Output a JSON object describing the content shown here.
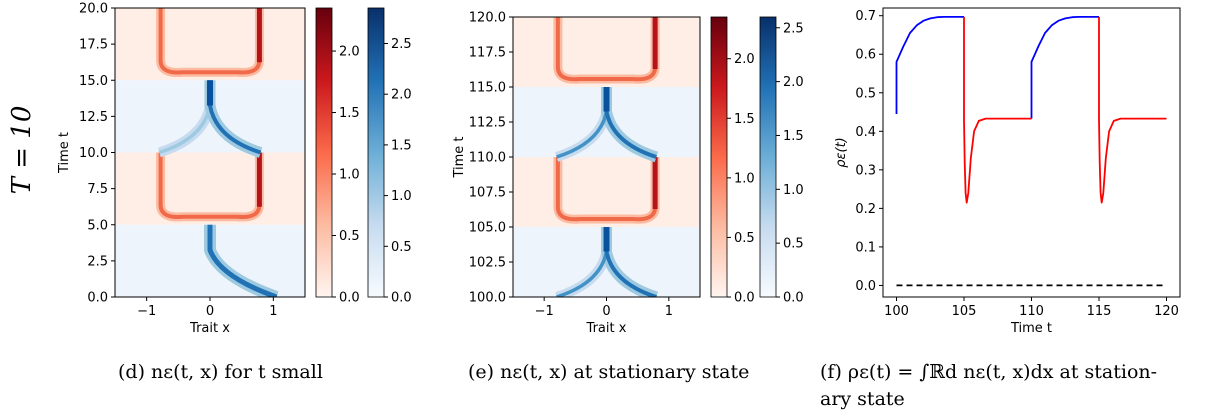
{
  "row_label": "T = 10",
  "captions": {
    "d": "(d) nε(t, x) for t small",
    "e": "(e) nε(t, x) at stationary state",
    "f_line1": "(f) ρε(t) = ∫ℝd nε(t, x)dx at station-",
    "f_line2": "ary state"
  },
  "chart_data": [
    {
      "id": "d",
      "type": "heatmap",
      "xlabel": "Trait x",
      "ylabel": "Time t",
      "xlim": [
        -1.5,
        1.5
      ],
      "ylim": [
        0,
        20
      ],
      "xticks": [
        -1,
        0,
        1
      ],
      "yticks": [
        "0.0",
        "2.5",
        "5.0",
        "7.5",
        "10.0",
        "12.5",
        "15.0",
        "17.5",
        "20.0"
      ],
      "blue_phases": [
        [
          0,
          5
        ],
        [
          10,
          15
        ]
      ],
      "red_phases": [
        [
          5,
          10
        ],
        [
          15,
          20
        ]
      ],
      "colorbar_red": {
        "ticks": [
          "0.0",
          "0.5",
          "1.0",
          "1.5",
          "2.0"
        ],
        "max": 2.35
      },
      "colorbar_blue": {
        "ticks": [
          "0.0",
          "0.5",
          "1.0",
          "1.5",
          "2.0",
          "2.5"
        ],
        "max": 2.85
      }
    },
    {
      "id": "e",
      "type": "heatmap",
      "xlabel": "Trait x",
      "ylabel": "Time t",
      "xlim": [
        -1.5,
        1.5
      ],
      "ylim": [
        100,
        120
      ],
      "xticks": [
        -1,
        0,
        1
      ],
      "yticks": [
        "100.0",
        "102.5",
        "105.0",
        "107.5",
        "110.0",
        "112.5",
        "115.0",
        "117.5",
        "120.0"
      ],
      "blue_phases": [
        [
          100,
          105
        ],
        [
          110,
          115
        ]
      ],
      "red_phases": [
        [
          105,
          110
        ],
        [
          115,
          120
        ]
      ],
      "colorbar_red": {
        "ticks": [
          "0.0",
          "0.5",
          "1.0",
          "1.5",
          "2.0"
        ],
        "max": 2.35
      },
      "colorbar_blue": {
        "ticks": [
          "0.0",
          "0.5",
          "1.0",
          "1.5",
          "2.0",
          "2.5"
        ],
        "max": 2.6
      }
    },
    {
      "id": "f",
      "type": "line",
      "xlabel": "Time t",
      "ylabel": "ρε(t)",
      "xlim": [
        99,
        121
      ],
      "ylim": [
        -0.03,
        0.72
      ],
      "xticks": [
        100,
        105,
        110,
        115,
        120
      ],
      "yticks": [
        "0.0",
        "0.1",
        "0.2",
        "0.3",
        "0.4",
        "0.5",
        "0.6",
        "0.7"
      ],
      "series": [
        {
          "color": "#0000ff",
          "points": [
            [
              100,
              0.445
            ],
            [
              100,
              0.58
            ],
            [
              100.5,
              0.62
            ],
            [
              101,
              0.655
            ],
            [
              101.5,
              0.675
            ],
            [
              102,
              0.687
            ],
            [
              102.5,
              0.693
            ],
            [
              103,
              0.696
            ],
            [
              103.5,
              0.697
            ],
            [
              105,
              0.697
            ]
          ]
        },
        {
          "color": "#0000ff",
          "points": [
            [
              110,
              0.433
            ],
            [
              110,
              0.58
            ],
            [
              110.5,
              0.62
            ],
            [
              111,
              0.655
            ],
            [
              111.5,
              0.675
            ],
            [
              112,
              0.687
            ],
            [
              112.5,
              0.693
            ],
            [
              113,
              0.696
            ],
            [
              113.5,
              0.697
            ],
            [
              115,
              0.697
            ]
          ]
        },
        {
          "color": "#ff0000",
          "points": [
            [
              105,
              0.697
            ],
            [
              105,
              0.43
            ],
            [
              105.05,
              0.32
            ],
            [
              105.12,
              0.24
            ],
            [
              105.2,
              0.215
            ],
            [
              105.32,
              0.24
            ],
            [
              105.5,
              0.33
            ],
            [
              105.75,
              0.4
            ],
            [
              106.1,
              0.427
            ],
            [
              106.6,
              0.433
            ],
            [
              110,
              0.433
            ]
          ]
        },
        {
          "color": "#ff0000",
          "points": [
            [
              115,
              0.697
            ],
            [
              115,
              0.43
            ],
            [
              115.05,
              0.32
            ],
            [
              115.12,
              0.24
            ],
            [
              115.2,
              0.215
            ],
            [
              115.32,
              0.24
            ],
            [
              115.5,
              0.33
            ],
            [
              115.75,
              0.4
            ],
            [
              116.1,
              0.427
            ],
            [
              116.6,
              0.433
            ],
            [
              120,
              0.433
            ]
          ]
        },
        {
          "color": "#000000",
          "dashed": true,
          "points": [
            [
              100,
              0.0
            ],
            [
              120,
              0.0
            ]
          ]
        }
      ]
    }
  ]
}
